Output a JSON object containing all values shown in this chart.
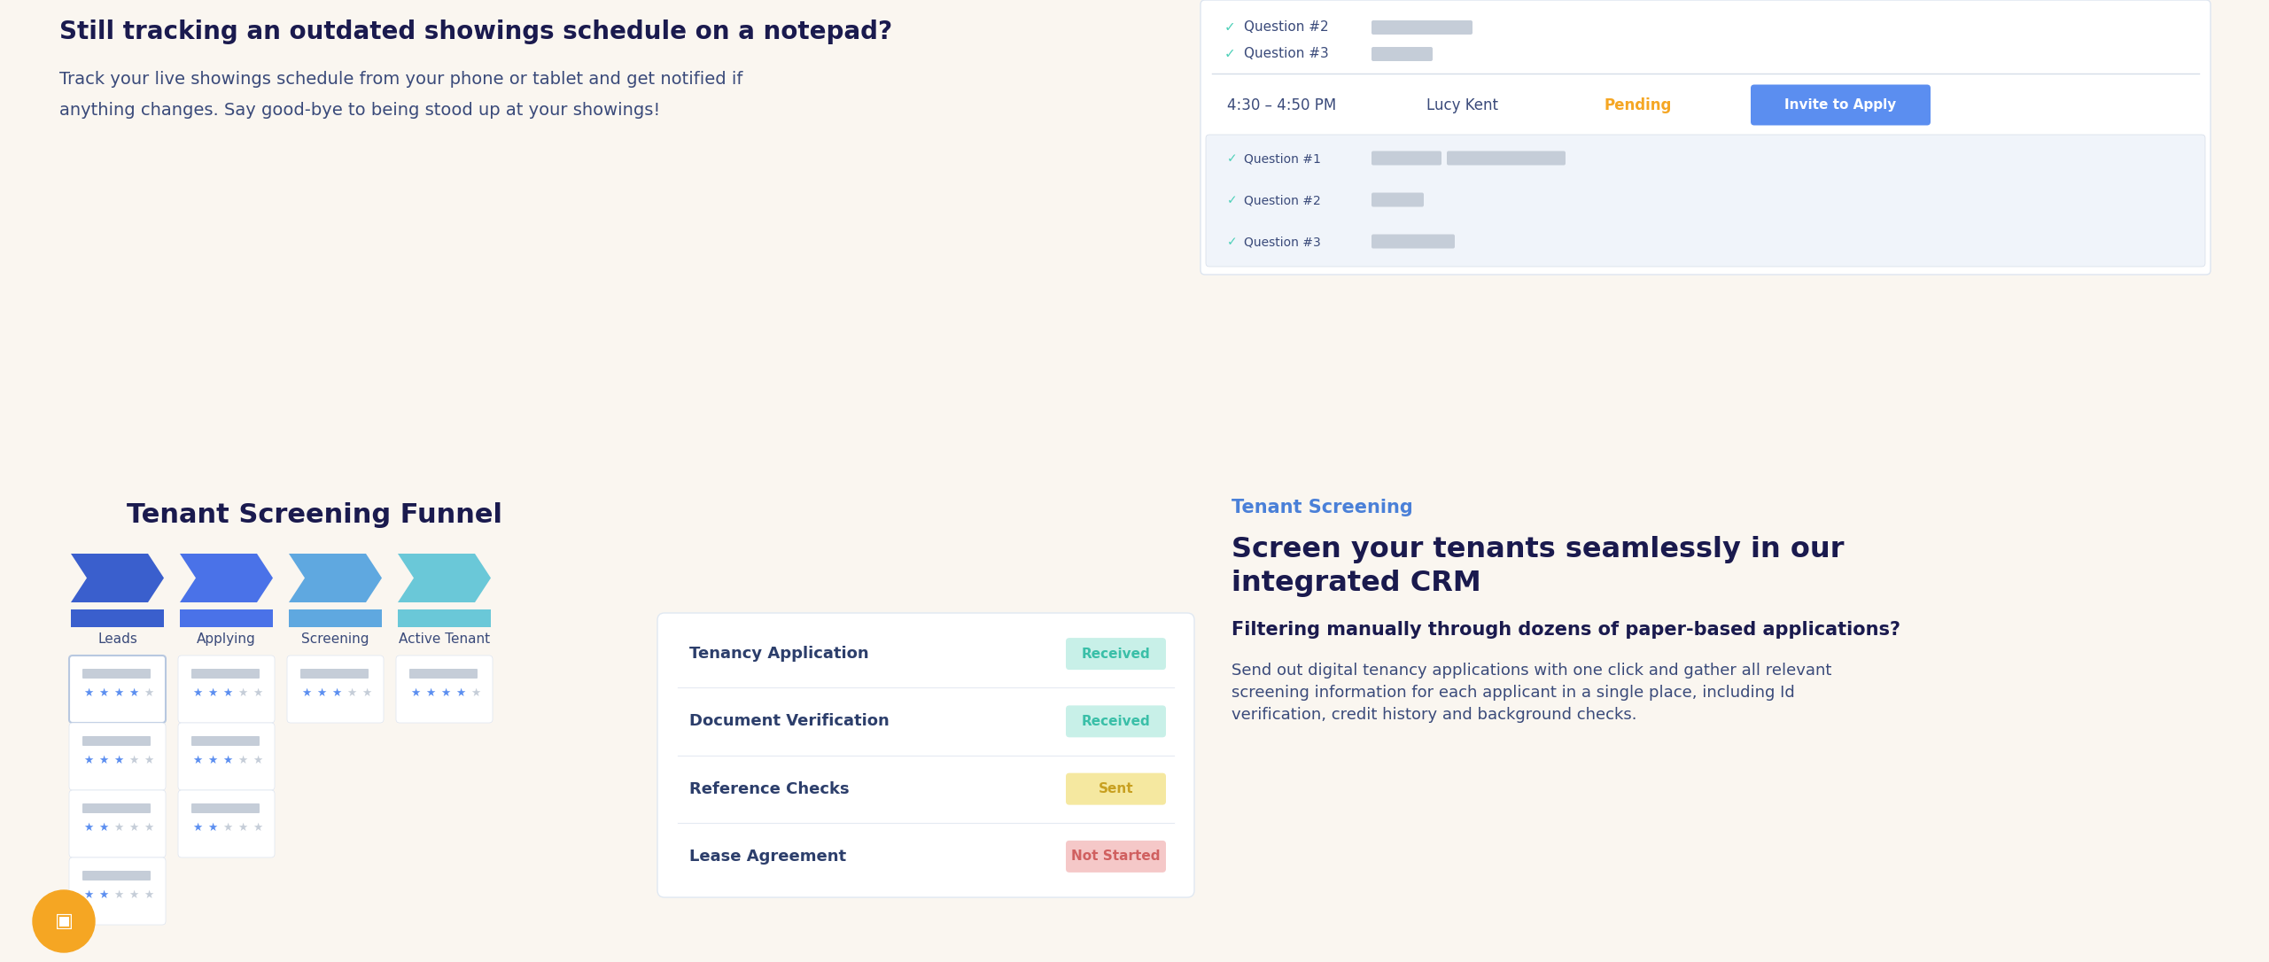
{
  "bg_color": "#faf6f0",
  "title_top": "Still tracking an outdated showings schedule on a notepad?",
  "title_top_color": "#1a1a4e",
  "body_top_line1": "Track your live showings schedule from your phone or tablet and get notified if",
  "body_top_line2": "anything changes. Say good-bye to being stood up at your showings!",
  "body_top_color": "#3a4a7a",
  "funnel_title": "Tenant Screening Funnel",
  "funnel_title_color": "#1a1a4e",
  "funnel_stages": [
    "Leads",
    "Applying",
    "Screening",
    "Active Tenant"
  ],
  "funnel_stage_colors": [
    "#3a5fcd",
    "#4a72e8",
    "#5fa8e0",
    "#6ac8d8"
  ],
  "funnel_stage_text_color": "#3a4a7a",
  "right_panel_title": "Tenant Screening",
  "right_panel_title_color": "#4a80d8",
  "right_heading_line1": "Screen your tenants seamlessly in our",
  "right_heading_line2": "integrated CRM",
  "right_heading_color": "#1a1a4e",
  "right_subheading": "Filtering manually through dozens of paper-based applications?",
  "right_subheading_color": "#1a1a4e",
  "right_body_line1": "Send out digital tenancy applications with one click and gather all relevant",
  "right_body_line2": "screening information for each applicant in a single place, including Id",
  "right_body_line3": "verification, credit history and background checks.",
  "right_body_color": "#3a4a7a",
  "checklist_items": [
    "Tenancy Application",
    "Document Verification",
    "Reference Checks",
    "Lease Agreement"
  ],
  "checklist_statuses": [
    "Received",
    "Received",
    "Sent",
    "Not Started"
  ],
  "checklist_status_text_colors": [
    "#3abfa8",
    "#3abfa8",
    "#c8a020",
    "#d06060"
  ],
  "checklist_status_bg_colors": [
    "#c8f0e8",
    "#c8f0e8",
    "#f5e8a0",
    "#f5c8c8"
  ],
  "schedule_time": "4:30 – 4:50 PM",
  "schedule_name": "Lucy Kent",
  "schedule_status": "Pending",
  "schedule_status_color": "#f5a623",
  "invite_btn_color": "#5b8ef0",
  "invite_btn_text": "Invite to Apply",
  "question_check_color": "#4dd0b8",
  "q_text_color": "#3a4a7a",
  "bar_gray": "#c5cdd8",
  "card_border_color": "#d8e0ec",
  "sub_panel_bg": "#f0f4fa",
  "star_filled": "#5b8ef0",
  "star_empty": "#c5cdd8",
  "chat_btn_color": "#f5a623",
  "panel_bg": "white",
  "panel_border": "#dde5f0"
}
